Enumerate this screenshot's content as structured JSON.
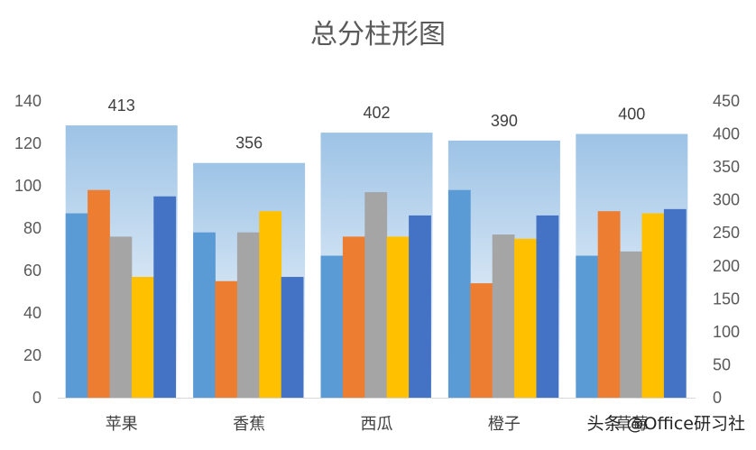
{
  "chart_data": {
    "type": "bar",
    "title": "总分柱形图",
    "categories": [
      "苹果",
      "香蕉",
      "西瓜",
      "橙子",
      "草莓"
    ],
    "series": [
      {
        "values": [
          87,
          78,
          67,
          98,
          67
        ],
        "color": "#5B9BD5"
      },
      {
        "values": [
          98,
          55,
          76,
          54,
          88
        ],
        "color": "#ED7D31"
      },
      {
        "values": [
          76,
          78,
          97,
          77,
          69
        ],
        "color": "#A5A5A5"
      },
      {
        "values": [
          57,
          88,
          76,
          75,
          87
        ],
        "color": "#FFC000"
      },
      {
        "values": [
          95,
          57,
          86,
          86,
          89
        ],
        "color": "#4472C4"
      }
    ],
    "totals": {
      "values": [
        413,
        356,
        402,
        390,
        400
      ],
      "axis": "secondary",
      "gradient_top": "#9DC3E6",
      "gradient_bottom": "#FFFFFF"
    },
    "y_left": {
      "min": 0,
      "max": 140,
      "step": 20
    },
    "y_right": {
      "min": 0,
      "max": 450,
      "step": 50
    },
    "grid": false,
    "legend": "none"
  },
  "watermark": "头条 @Office研习社"
}
